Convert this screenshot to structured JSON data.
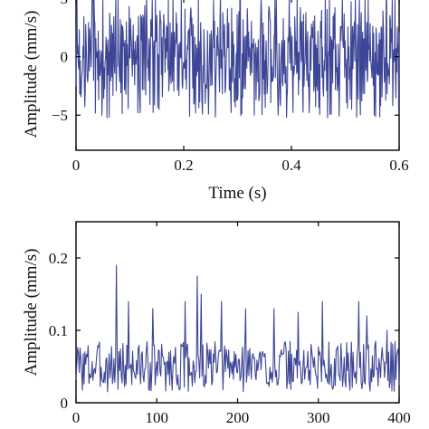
{
  "chart_data": [
    {
      "type": "line",
      "title": "",
      "xlabel": "Time (s)",
      "ylabel": "Amplitude (mm/s)",
      "xlim": [
        0,
        0.6
      ],
      "ylim": [
        -8,
        5
      ],
      "xticks": [
        0,
        0.2,
        0.4,
        0.6
      ],
      "xtick_labels": [
        "0",
        "0.2",
        "0.4",
        "0.6"
      ],
      "yticks": [
        -5,
        0,
        5
      ],
      "ytick_labels": [
        "−5",
        "0",
        "5"
      ],
      "grid": false,
      "color": "#3d4696",
      "signal": {
        "description_of_trace": "dense oscillating waveform",
        "amplitude_envelope": 5,
        "n_points": 700,
        "seed": 7
      }
    },
    {
      "type": "line",
      "title": "",
      "xlabel": "",
      "ylabel": "Amplitude (mm/s)",
      "xlim": [
        0,
        400
      ],
      "ylim": [
        0,
        0.25
      ],
      "xticks": [
        0,
        100,
        200,
        300,
        400
      ],
      "xtick_labels": [
        "0",
        "100",
        "200",
        "300",
        "400"
      ],
      "yticks": [
        0,
        0.1,
        0.2
      ],
      "ytick_labels": [
        "0",
        "0.1",
        "0.2"
      ],
      "grid": false,
      "color": "#3d4696",
      "signal": {
        "baseline": 0.05,
        "noise": 0.025,
        "n_points": 400,
        "seed": 3,
        "peaks": [
          {
            "x": 50,
            "y": 0.19
          },
          {
            "x": 150,
            "y": 0.175
          },
          {
            "x": 155,
            "y": 0.15
          },
          {
            "x": 65,
            "y": 0.14
          },
          {
            "x": 95,
            "y": 0.13
          },
          {
            "x": 135,
            "y": 0.14
          },
          {
            "x": 180,
            "y": 0.14
          },
          {
            "x": 210,
            "y": 0.13
          },
          {
            "x": 245,
            "y": 0.13
          },
          {
            "x": 275,
            "y": 0.125
          },
          {
            "x": 305,
            "y": 0.14
          },
          {
            "x": 350,
            "y": 0.14
          },
          {
            "x": 360,
            "y": 0.12
          },
          {
            "x": 385,
            "y": 0.1
          }
        ]
      }
    }
  ]
}
